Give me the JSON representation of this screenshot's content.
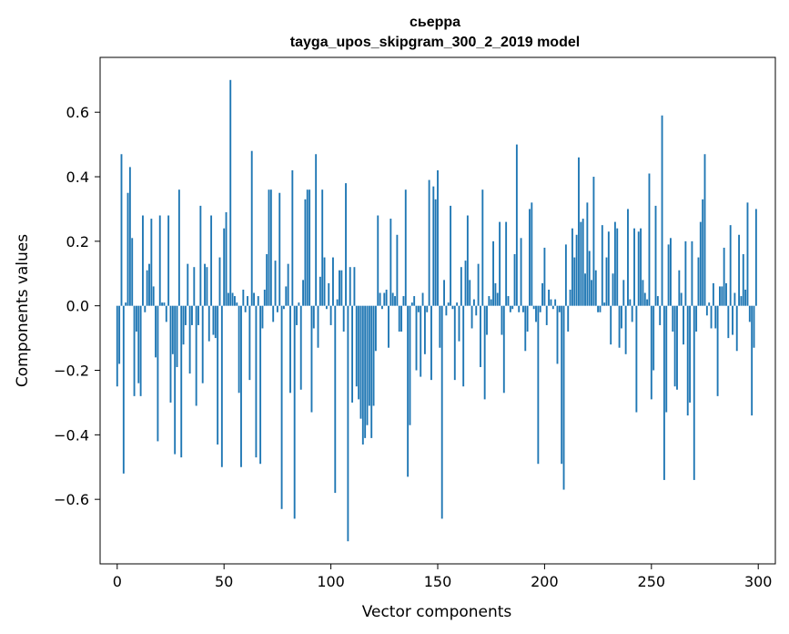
{
  "chart_data": {
    "type": "bar",
    "title": "сьерра",
    "subtitle": "tayga_upos_skipgram_300_2_2019 model",
    "xlabel": "Vector components",
    "ylabel": "Components values",
    "xlim": [
      -8,
      308
    ],
    "ylim": [
      -0.8,
      0.77
    ],
    "xticks": [
      0,
      50,
      100,
      150,
      200,
      250,
      300
    ],
    "xtick_labels": [
      "0",
      "50",
      "100",
      "150",
      "200",
      "250",
      "300"
    ],
    "yticks": [
      -0.6,
      -0.4,
      -0.2,
      0.0,
      0.2,
      0.4,
      0.6
    ],
    "ytick_labels": [
      "−0.6",
      "−0.4",
      "−0.2",
      "0.0",
      "0.2",
      "0.4",
      "0.6"
    ],
    "bar_color": "#1f77b4",
    "grid": false,
    "x": [
      0,
      1,
      2,
      3,
      4,
      5,
      6,
      7,
      8,
      9,
      10,
      11,
      12,
      13,
      14,
      15,
      16,
      17,
      18,
      19,
      20,
      21,
      22,
      23,
      24,
      25,
      26,
      27,
      28,
      29,
      30,
      31,
      32,
      33,
      34,
      35,
      36,
      37,
      38,
      39,
      40,
      41,
      42,
      43,
      44,
      45,
      46,
      47,
      48,
      49,
      50,
      51,
      52,
      53,
      54,
      55,
      56,
      57,
      58,
      59,
      60,
      61,
      62,
      63,
      64,
      65,
      66,
      67,
      68,
      69,
      70,
      71,
      72,
      73,
      74,
      75,
      76,
      77,
      78,
      79,
      80,
      81,
      82,
      83,
      84,
      85,
      86,
      87,
      88,
      89,
      90,
      91,
      92,
      93,
      94,
      95,
      96,
      97,
      98,
      99,
      100,
      101,
      102,
      103,
      104,
      105,
      106,
      107,
      108,
      109,
      110,
      111,
      112,
      113,
      114,
      115,
      116,
      117,
      118,
      119,
      120,
      121,
      122,
      123,
      124,
      125,
      126,
      127,
      128,
      129,
      130,
      131,
      132,
      133,
      134,
      135,
      136,
      137,
      138,
      139,
      140,
      141,
      142,
      143,
      144,
      145,
      146,
      147,
      148,
      149,
      150,
      151,
      152,
      153,
      154,
      155,
      156,
      157,
      158,
      159,
      160,
      161,
      162,
      163,
      164,
      165,
      166,
      167,
      168,
      169,
      170,
      171,
      172,
      173,
      174,
      175,
      176,
      177,
      178,
      179,
      180,
      181,
      182,
      183,
      184,
      185,
      186,
      187,
      188,
      189,
      190,
      191,
      192,
      193,
      194,
      195,
      196,
      197,
      198,
      199,
      200,
      201,
      202,
      203,
      204,
      205,
      206,
      207,
      208,
      209,
      210,
      211,
      212,
      213,
      214,
      215,
      216,
      217,
      218,
      219,
      220,
      221,
      222,
      223,
      224,
      225,
      226,
      227,
      228,
      229,
      230,
      231,
      232,
      233,
      234,
      235,
      236,
      237,
      238,
      239,
      240,
      241,
      242,
      243,
      244,
      245,
      246,
      247,
      248,
      249,
      250,
      251,
      252,
      253,
      254,
      255,
      256,
      257,
      258,
      259,
      260,
      261,
      262,
      263,
      264,
      265,
      266,
      267,
      268,
      269,
      270,
      271,
      272,
      273,
      274,
      275,
      276,
      277,
      278,
      279,
      280,
      281,
      282,
      283,
      284,
      285,
      286,
      287,
      288,
      289,
      290,
      291,
      292,
      293,
      294,
      295,
      296,
      297,
      298,
      299
    ],
    "values": [
      -0.25,
      -0.18,
      0.47,
      -0.52,
      0.01,
      0.35,
      0.43,
      0.21,
      -0.28,
      -0.08,
      -0.24,
      -0.28,
      0.28,
      -0.02,
      0.11,
      0.13,
      0.27,
      0.06,
      -0.16,
      -0.42,
      0.28,
      0.01,
      0.01,
      -0.05,
      0.28,
      -0.3,
      -0.15,
      -0.46,
      -0.19,
      0.36,
      -0.47,
      -0.12,
      -0.06,
      0.13,
      -0.21,
      -0.06,
      0.12,
      -0.31,
      -0.06,
      0.31,
      -0.24,
      0.13,
      0.12,
      -0.11,
      0.28,
      -0.09,
      -0.1,
      -0.43,
      0.15,
      -0.5,
      0.24,
      0.29,
      0.04,
      0.7,
      0.04,
      0.03,
      0.01,
      -0.27,
      -0.5,
      0.05,
      -0.02,
      0.03,
      -0.23,
      0.48,
      0.04,
      -0.47,
      0.03,
      -0.49,
      -0.07,
      0.05,
      0.16,
      0.36,
      0.36,
      -0.05,
      0.14,
      -0.02,
      0.35,
      -0.63,
      -0.01,
      0.06,
      0.13,
      -0.27,
      0.42,
      -0.66,
      -0.06,
      0.01,
      -0.26,
      0.08,
      0.33,
      0.36,
      0.36,
      -0.33,
      -0.07,
      0.47,
      -0.13,
      0.09,
      0.36,
      0.15,
      -0.01,
      0.07,
      -0.06,
      0.15,
      -0.58,
      0.02,
      0.11,
      0.11,
      -0.08,
      0.38,
      -0.73,
      0.12,
      -0.3,
      0.12,
      -0.25,
      -0.29,
      -0.35,
      -0.43,
      -0.41,
      -0.37,
      -0.31,
      -0.41,
      -0.31,
      -0.14,
      0.28,
      0.04,
      -0.01,
      0.04,
      0.05,
      -0.13,
      0.27,
      0.04,
      0.03,
      0.22,
      -0.08,
      -0.08,
      0.03,
      0.36,
      -0.53,
      -0.37,
      0.01,
      0.03,
      -0.2,
      -0.02,
      -0.22,
      0.04,
      -0.15,
      -0.02,
      0.39,
      -0.23,
      0.37,
      0.33,
      0.42,
      -0.13,
      -0.66,
      0.08,
      -0.03,
      0.01,
      0.31,
      -0.01,
      -0.23,
      0.01,
      -0.11,
      0.12,
      -0.25,
      0.14,
      0.28,
      0.08,
      -0.07,
      0.02,
      -0.03,
      0.13,
      -0.19,
      0.36,
      -0.29,
      -0.09,
      0.03,
      0.02,
      0.2,
      0.07,
      0.04,
      0.26,
      -0.09,
      -0.27,
      0.26,
      0.03,
      -0.02,
      -0.01,
      0.16,
      0.5,
      -0.02,
      0.21,
      -0.02,
      -0.14,
      -0.08,
      0.3,
      0.32,
      -0.01,
      -0.05,
      -0.49,
      -0.02,
      0.07,
      0.18,
      -0.06,
      0.05,
      0.02,
      -0.01,
      0.02,
      -0.18,
      -0.02,
      -0.49,
      -0.57,
      0.19,
      -0.08,
      0.05,
      0.24,
      0.15,
      0.22,
      0.46,
      0.26,
      0.27,
      0.1,
      0.32,
      0.17,
      0.08,
      0.4,
      0.11,
      -0.02,
      -0.02,
      0.25,
      0.01,
      0.15,
      0.23,
      -0.12,
      0.1,
      0.26,
      0.24,
      -0.13,
      -0.07,
      0.08,
      -0.15,
      0.3,
      0.02,
      -0.05,
      0.24,
      -0.33,
      0.23,
      0.24,
      0.08,
      0.04,
      0.02,
      0.41,
      -0.29,
      -0.2,
      0.31,
      0.03,
      -0.06,
      0.59,
      -0.54,
      -0.33,
      0.19,
      0.21,
      -0.08,
      -0.25,
      -0.26,
      0.11,
      0.04,
      -0.12,
      0.2,
      -0.34,
      -0.3,
      0.2,
      -0.54,
      -0.08,
      0.15,
      0.26,
      0.33,
      0.47,
      -0.03,
      0.01,
      -0.07,
      0.07,
      -0.07,
      -0.28,
      0.06,
      0.06,
      0.18,
      0.07,
      -0.1,
      0.25,
      -0.09,
      0.04,
      -0.14,
      0.22,
      0.03,
      0.16,
      0.05,
      0.32,
      -0.05,
      -0.34,
      -0.13,
      0.3
    ]
  }
}
